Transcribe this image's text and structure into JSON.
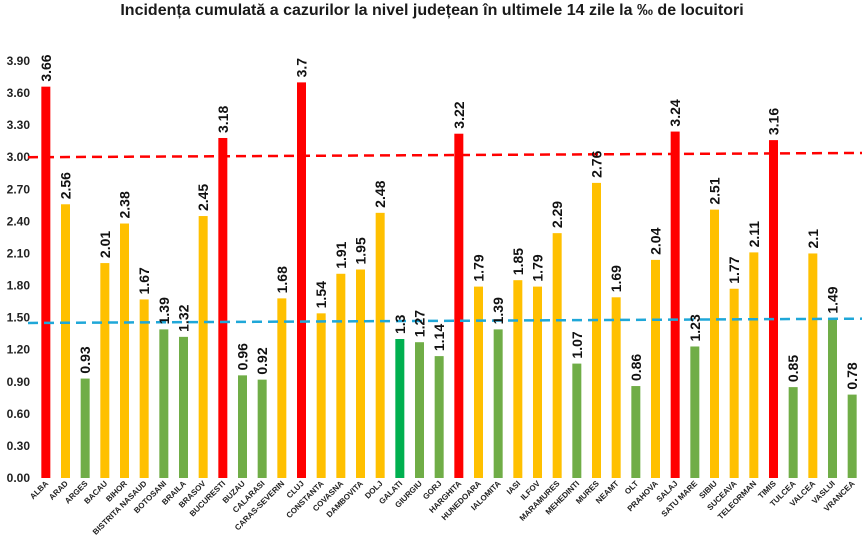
{
  "chart_data": {
    "type": "bar",
    "title": "Incidența cumulată a cazurilor la nivel județean în ultimele 14 zile la ‰ de locuitori",
    "categories": [
      "ALBA",
      "ARAD",
      "ARGES",
      "BACAU",
      "BIHOR",
      "BISTRITA NASAUD",
      "BOTOSANI",
      "BRAILA",
      "BRASOV",
      "BUCURESTI",
      "BUZAU",
      "CALARASI",
      "CARAS-SEVERIN",
      "CLUJ",
      "CONSTANTA",
      "COVASNA",
      "DAMBOVITA",
      "DOLJ",
      "GALATI",
      "GIURGIU",
      "GORJ",
      "HARGHITA",
      "HUNEDOARA",
      "IALOMITA",
      "IASI",
      "ILFOV",
      "MARAMURES",
      "MEHEDINTI",
      "MURES",
      "NEAMT",
      "OLT",
      "PRAHOVA",
      "SALAJ",
      "SATU MARE",
      "SIBIU",
      "SUCEAVA",
      "TELEORMAN",
      "TIMIS",
      "TULCEA",
      "VALCEA",
      "VASLUI",
      "VRANCEA"
    ],
    "values": [
      3.66,
      2.56,
      0.93,
      2.01,
      2.38,
      1.67,
      1.39,
      1.32,
      2.45,
      3.18,
      0.96,
      0.92,
      1.68,
      3.7,
      1.54,
      1.91,
      1.95,
      2.48,
      1.3,
      1.27,
      1.14,
      3.22,
      1.79,
      1.39,
      1.85,
      1.79,
      2.29,
      1.07,
      2.76,
      1.69,
      0.86,
      2.04,
      3.24,
      1.23,
      2.51,
      1.77,
      2.11,
      3.16,
      0.85,
      2.1,
      1.49,
      0.78
    ],
    "value_labels": [
      "3.66",
      "2.56",
      "0.93",
      "2.01",
      "2.38",
      "1.67",
      "1.39",
      "1.32",
      "2.45",
      "3.18",
      "0.96",
      "0.92",
      "1.68",
      "3.7",
      "1.54",
      "1.91",
      "1.95",
      "2.48",
      "1.3",
      "1.27",
      "1.14",
      "3.22",
      "1.79",
      "1.39",
      "1.85",
      "1.79",
      "2.29",
      "1.07",
      "2.76",
      "1.69",
      "0.86",
      "2.04",
      "3.24",
      "1.23",
      "2.51",
      "1.77",
      "2.11",
      "3.16",
      "0.85",
      "2.1",
      "1.49",
      "0.78"
    ],
    "bar_colors": [
      "#ff0000",
      "#ffc000",
      "#70ad47",
      "#ffc000",
      "#ffc000",
      "#ffc000",
      "#70ad47",
      "#70ad47",
      "#ffc000",
      "#ff0000",
      "#70ad47",
      "#70ad47",
      "#ffc000",
      "#ff0000",
      "#ffc000",
      "#ffc000",
      "#ffc000",
      "#ffc000",
      "#00b050",
      "#70ad47",
      "#70ad47",
      "#ff0000",
      "#ffc000",
      "#70ad47",
      "#ffc000",
      "#ffc000",
      "#ffc000",
      "#70ad47",
      "#ffc000",
      "#ffc000",
      "#70ad47",
      "#ffc000",
      "#ff0000",
      "#70ad47",
      "#ffc000",
      "#ffc000",
      "#ffc000",
      "#ff0000",
      "#70ad47",
      "#ffc000",
      "#70ad47",
      "#70ad47"
    ],
    "ylim": [
      0,
      3.9
    ],
    "yticks": [
      "0.00",
      "0.30",
      "0.60",
      "0.90",
      "1.20",
      "1.50",
      "1.80",
      "2.10",
      "2.40",
      "2.70",
      "3.00",
      "3.30",
      "3.60",
      "3.90"
    ],
    "reference_lines": [
      {
        "value_start": 3.0,
        "value_end": 3.04,
        "color": "#ff0000"
      },
      {
        "value_start": 1.45,
        "value_end": 1.49,
        "color": "#1fa7d8"
      }
    ],
    "grid": false,
    "legend": "none",
    "xlabel": "",
    "ylabel": ""
  }
}
